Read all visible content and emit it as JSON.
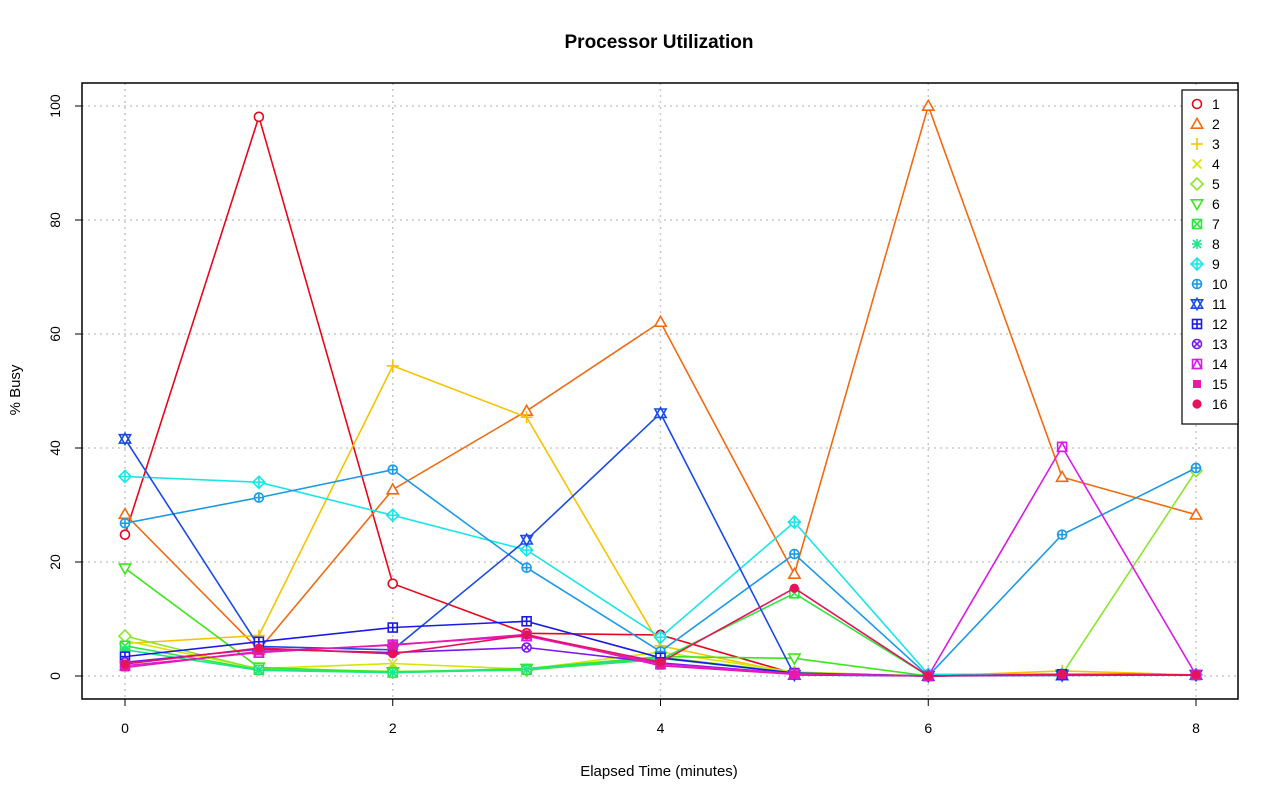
{
  "chart_data": {
    "type": "line",
    "title": "Processor Utilization",
    "xlabel": "Elapsed Time (minutes)",
    "ylabel": "% Busy",
    "x": [
      0,
      1,
      2,
      3,
      4,
      5,
      6,
      7,
      8
    ],
    "xlim": [
      0,
      8
    ],
    "ylim": [
      0,
      100
    ],
    "x_ticks": [
      0,
      2,
      4,
      6,
      8
    ],
    "y_ticks": [
      0,
      20,
      40,
      60,
      80,
      100
    ],
    "grid": true,
    "legend_position": "top-right",
    "series": [
      {
        "name": "1",
        "color": "#e6081a",
        "marker": "circle",
        "values": [
          24.8,
          98.1,
          16.2,
          7.5,
          7.2,
          0.4,
          0.0,
          0.3,
          0.2
        ]
      },
      {
        "name": "2",
        "color": "#f26a0f",
        "marker": "triangle-up",
        "values": [
          28.4,
          4.6,
          32.7,
          46.5,
          62.1,
          17.9,
          100.0,
          34.9,
          28.3
        ]
      },
      {
        "name": "3",
        "color": "#f5c400",
        "marker": "plus",
        "values": [
          5.7,
          7.1,
          54.4,
          45.4,
          5.3,
          0.4,
          0.0,
          0.9,
          0.2
        ]
      },
      {
        "name": "4",
        "color": "#d4e600",
        "marker": "x",
        "values": [
          6.2,
          1.3,
          2.2,
          1.2,
          4.2,
          0.7,
          0.0,
          0.3,
          0.2
        ]
      },
      {
        "name": "5",
        "color": "#8ae62b",
        "marker": "diamond",
        "values": [
          7.0,
          1.2,
          0.8,
          1.0,
          3.3,
          0.6,
          0.0,
          0.3,
          36.0
        ]
      },
      {
        "name": "6",
        "color": "#3ce61a",
        "marker": "triangle-down",
        "values": [
          18.9,
          1.5,
          0.7,
          1.3,
          3.4,
          3.1,
          0.0,
          0.3,
          0.2
        ]
      },
      {
        "name": "7",
        "color": "#2ee640",
        "marker": "square-x",
        "values": [
          5.3,
          1.1,
          0.6,
          1.1,
          2.9,
          14.5,
          0.0,
          0.3,
          0.2
        ]
      },
      {
        "name": "8",
        "color": "#1de68a",
        "marker": "asterisk",
        "values": [
          4.6,
          1.0,
          0.6,
          1.2,
          3.1,
          0.5,
          0.0,
          0.3,
          0.2
        ]
      },
      {
        "name": "9",
        "color": "#1ae6e6",
        "marker": "diamond-plus",
        "values": [
          35.0,
          34.0,
          28.2,
          22.1,
          6.8,
          27.0,
          0.3,
          0.3,
          0.2
        ]
      },
      {
        "name": "10",
        "color": "#1a9ae6",
        "marker": "circle-plus",
        "values": [
          26.8,
          31.3,
          36.2,
          19.0,
          4.3,
          21.4,
          0.0,
          24.8,
          36.5
        ]
      },
      {
        "name": "11",
        "color": "#1a4be6",
        "marker": "star-of-david",
        "values": [
          41.6,
          5.2,
          4.6,
          23.9,
          46.1,
          0.2,
          0.0,
          0.1,
          0.2
        ]
      },
      {
        "name": "12",
        "color": "#1a1ae6",
        "marker": "square-plus",
        "values": [
          3.4,
          6.0,
          8.5,
          9.6,
          3.2,
          0.5,
          0.0,
          0.3,
          0.2
        ]
      },
      {
        "name": "13",
        "color": "#7a1ae6",
        "marker": "circle-x",
        "values": [
          2.4,
          4.7,
          4.1,
          5.0,
          2.3,
          0.4,
          0.0,
          0.3,
          0.2
        ]
      },
      {
        "name": "14",
        "color": "#d91ae6",
        "marker": "square-triangle",
        "values": [
          1.8,
          4.1,
          5.5,
          7.0,
          2.1,
          0.4,
          0.0,
          40.2,
          0.2
        ]
      },
      {
        "name": "15",
        "color": "#e61aa8",
        "marker": "small-square",
        "values": [
          1.5,
          4.3,
          5.4,
          7.3,
          1.8,
          0.3,
          0.0,
          0.2,
          0.2
        ]
      },
      {
        "name": "16",
        "color": "#e6135a",
        "marker": "filled-circle",
        "values": [
          2.1,
          4.9,
          3.9,
          7.2,
          2.4,
          15.4,
          0.0,
          0.3,
          0.2
        ]
      }
    ]
  }
}
